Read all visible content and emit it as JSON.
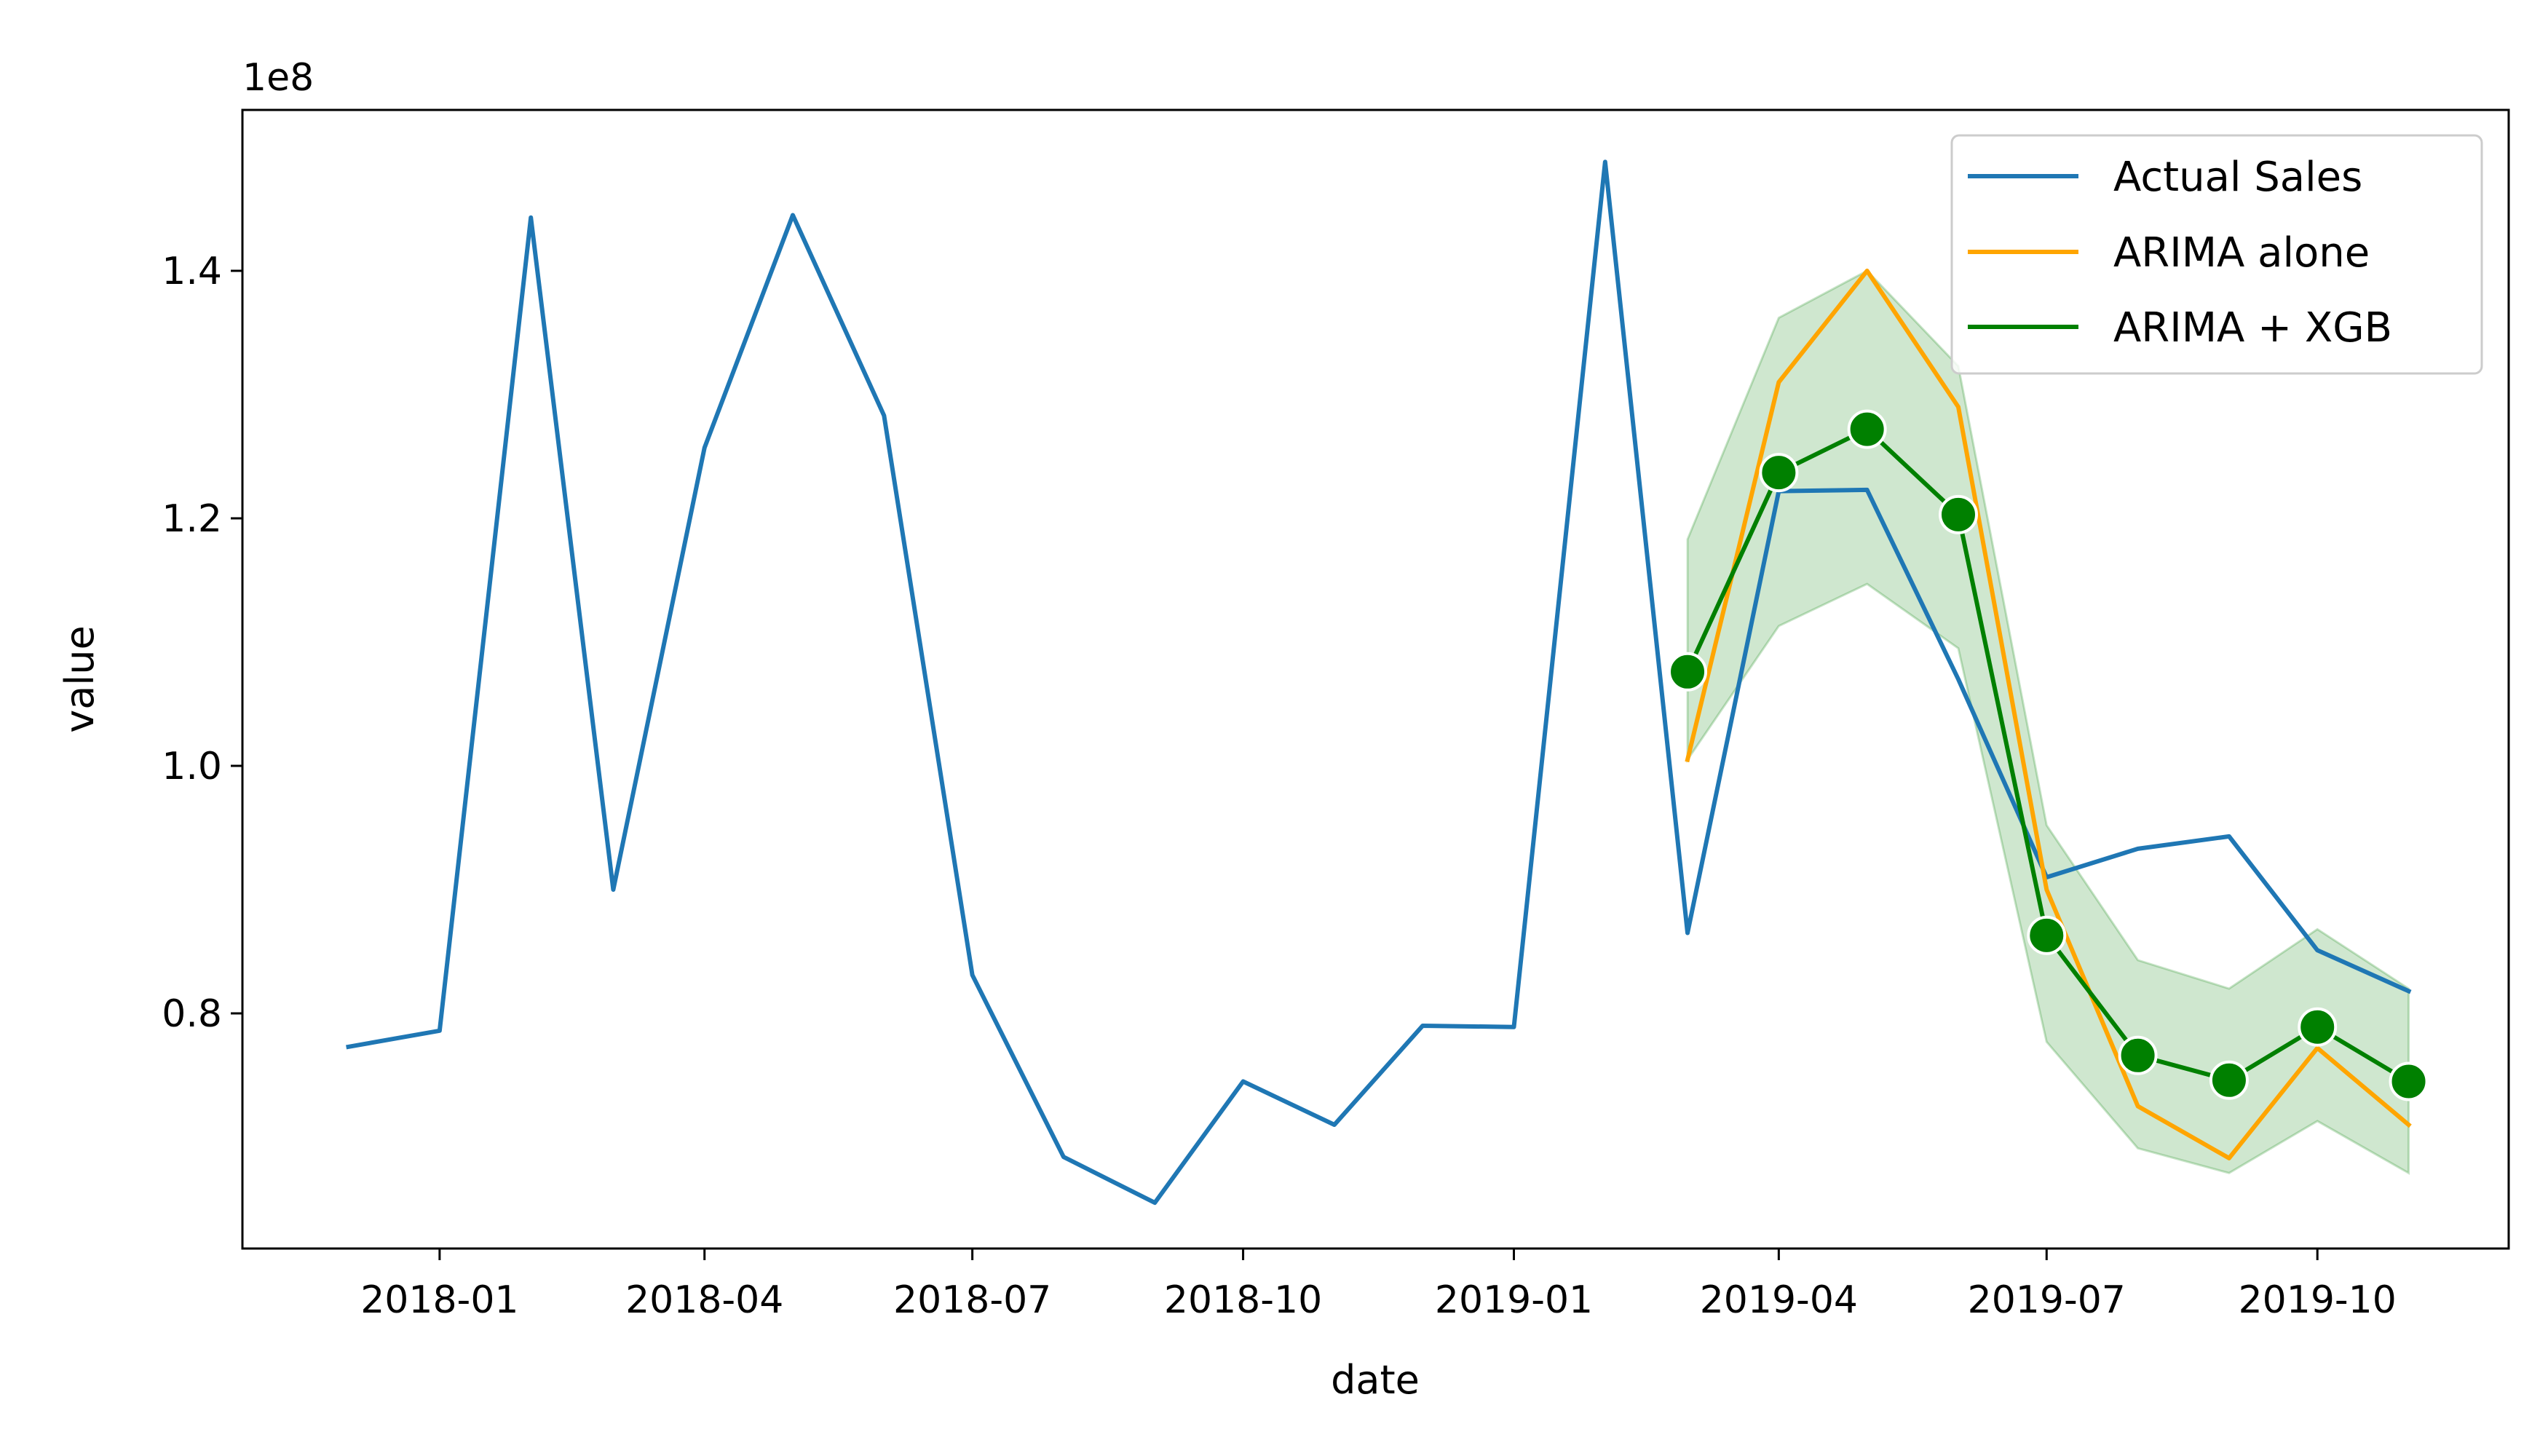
{
  "chart_data": {
    "type": "line",
    "xlabel": "date",
    "ylabel": "value",
    "y_scale_label": "1e8",
    "x_tick_labels": [
      "2018-01",
      "2018-04",
      "2018-07",
      "2018-10",
      "2019-01",
      "2019-04",
      "2019-07",
      "2019-10"
    ],
    "y_tick_labels": [
      "0.8",
      "1.0",
      "1.2",
      "1.4"
    ],
    "y_ticks": [
      0.8,
      1.0,
      1.2,
      1.4
    ],
    "xlim": [
      "2017-10-26",
      "2019-12-05"
    ],
    "ylim": [
      0.61,
      1.53
    ],
    "grid": false,
    "legend_position": "top-right",
    "series": [
      {
        "name": "Actual Sales",
        "color": "#1f77b4",
        "x": [
          "2017-12-01",
          "2018-01-01",
          "2018-02-01",
          "2018-03-01",
          "2018-04-01",
          "2018-05-01",
          "2018-06-01",
          "2018-07-01",
          "2018-08-01",
          "2018-09-01",
          "2018-10-01",
          "2018-11-01",
          "2018-12-01",
          "2019-01-01",
          "2019-02-01",
          "2019-03-01",
          "2019-04-01",
          "2019-05-01",
          "2019-06-01",
          "2019-07-01",
          "2019-08-01",
          "2019-09-01",
          "2019-10-01",
          "2019-11-01"
        ],
        "values": [
          0.773,
          0.786,
          1.443,
          0.9,
          1.257,
          1.445,
          1.283,
          0.831,
          0.684,
          0.647,
          0.745,
          0.71,
          0.79,
          0.789,
          1.488,
          0.865,
          1.222,
          1.223,
          1.07,
          0.91,
          0.933,
          0.943,
          0.851,
          0.818
        ]
      },
      {
        "name": "ARIMA alone",
        "color": "#ffa500",
        "x": [
          "2019-03-01",
          "2019-04-01",
          "2019-05-01",
          "2019-06-01",
          "2019-07-01",
          "2019-08-01",
          "2019-09-01",
          "2019-10-01",
          "2019-11-01"
        ],
        "values": [
          1.005,
          1.31,
          1.4,
          1.29,
          0.9,
          0.725,
          0.683,
          0.772,
          0.71
        ]
      },
      {
        "name": "ARIMA + XGB",
        "color": "#008000",
        "markers": true,
        "x": [
          "2019-03-01",
          "2019-04-01",
          "2019-05-01",
          "2019-06-01",
          "2019-07-01",
          "2019-08-01",
          "2019-09-01",
          "2019-10-01",
          "2019-11-01"
        ],
        "values": [
          1.076,
          1.237,
          1.272,
          1.203,
          0.863,
          0.766,
          0.746,
          0.789,
          0.745
        ],
        "band_lower": [
          1.005,
          1.113,
          1.147,
          1.095,
          0.777,
          0.691,
          0.671,
          0.713,
          0.671
        ],
        "band_upper": [
          1.183,
          1.362,
          1.4,
          1.323,
          0.952,
          0.843,
          0.82,
          0.868,
          0.82
        ],
        "band_color": "#008000"
      }
    ]
  }
}
